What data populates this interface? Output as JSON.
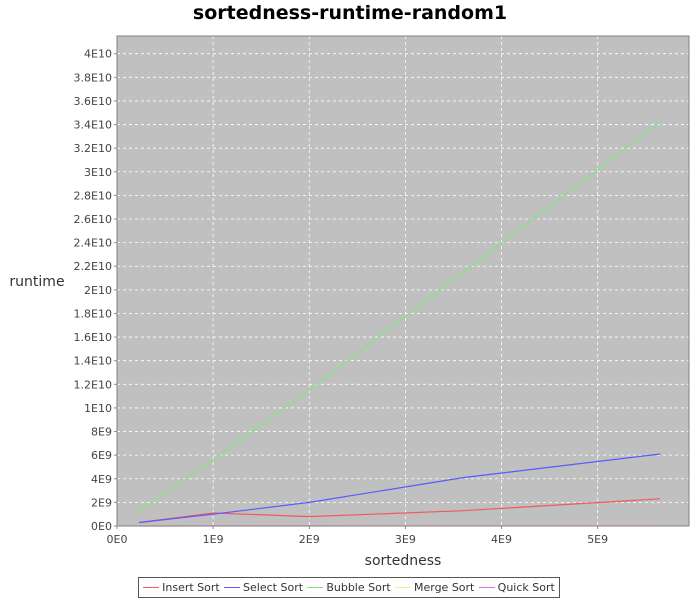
{
  "chart_data": {
    "type": "line",
    "title": "sortedness-runtime-random1",
    "xlabel": "sortedness",
    "ylabel": "runtime",
    "xlim": [
      0,
      5950000000
    ],
    "ylim": [
      0,
      41500000000
    ],
    "x_ticks": [
      {
        "value": 0,
        "label": "0E0"
      },
      {
        "value": 1000000000,
        "label": "1E9"
      },
      {
        "value": 2000000000,
        "label": "2E9"
      },
      {
        "value": 3000000000,
        "label": "3E9"
      },
      {
        "value": 4000000000,
        "label": "4E9"
      },
      {
        "value": 5000000000,
        "label": "5E9"
      }
    ],
    "y_ticks": [
      {
        "value": 0,
        "label": "0E0"
      },
      {
        "value": 2000000000,
        "label": "2E9"
      },
      {
        "value": 4000000000,
        "label": "4E9"
      },
      {
        "value": 6000000000,
        "label": "6E9"
      },
      {
        "value": 8000000000,
        "label": "8E9"
      },
      {
        "value": 10000000000,
        "label": "1E10"
      },
      {
        "value": 12000000000,
        "label": "1.2E10"
      },
      {
        "value": 14000000000,
        "label": "1.4E10"
      },
      {
        "value": 16000000000,
        "label": "1.6E10"
      },
      {
        "value": 18000000000,
        "label": "1.8E10"
      },
      {
        "value": 20000000000,
        "label": "2E10"
      },
      {
        "value": 22000000000,
        "label": "2.2E10"
      },
      {
        "value": 24000000000,
        "label": "2.4E10"
      },
      {
        "value": 26000000000,
        "label": "2.6E10"
      },
      {
        "value": 28000000000,
        "label": "2.8E10"
      },
      {
        "value": 30000000000,
        "label": "3E10"
      },
      {
        "value": 32000000000,
        "label": "3.2E10"
      },
      {
        "value": 34000000000,
        "label": "3.4E10"
      },
      {
        "value": 36000000000,
        "label": "3.6E10"
      },
      {
        "value": 38000000000,
        "label": "3.8E10"
      },
      {
        "value": 40000000000,
        "label": "4E10"
      }
    ],
    "grid": true,
    "legend_position": "bottom",
    "plot_background": "#c0c0c0",
    "series": [
      {
        "name": "Insert Sort",
        "color": "#f05a5a",
        "x": [
          230000000,
          1000000000,
          2000000000,
          3600000000,
          5650000000
        ],
        "y": [
          300000000,
          1100000000,
          800000000,
          1300000000,
          2300000000
        ]
      },
      {
        "name": "Select Sort",
        "color": "#5a5aff",
        "x": [
          230000000,
          1000000000,
          2000000000,
          3600000000,
          5650000000
        ],
        "y": [
          300000000,
          1000000000,
          2000000000,
          4100000000,
          6100000000
        ]
      },
      {
        "name": "Bubble Sort",
        "color": "#7ee87e",
        "x": [
          230000000,
          1000000000,
          2000000000,
          3600000000,
          5650000000
        ],
        "y": [
          1200000000,
          5600000000,
          11500000000,
          21500000000,
          34200000000
        ]
      },
      {
        "name": "Merge Sort",
        "color": "#f0f08c",
        "x": [
          230000000,
          1000000000,
          2000000000,
          3600000000,
          5650000000
        ],
        "y": [
          5000000,
          10000000,
          15000000,
          22000000,
          30000000
        ]
      },
      {
        "name": "Quick Sort",
        "color": "#e070e0",
        "x": [
          230000000,
          1000000000,
          2000000000,
          3600000000,
          5650000000
        ],
        "y": [
          3000000,
          6000000,
          9000000,
          14000000,
          20000000
        ]
      }
    ]
  }
}
